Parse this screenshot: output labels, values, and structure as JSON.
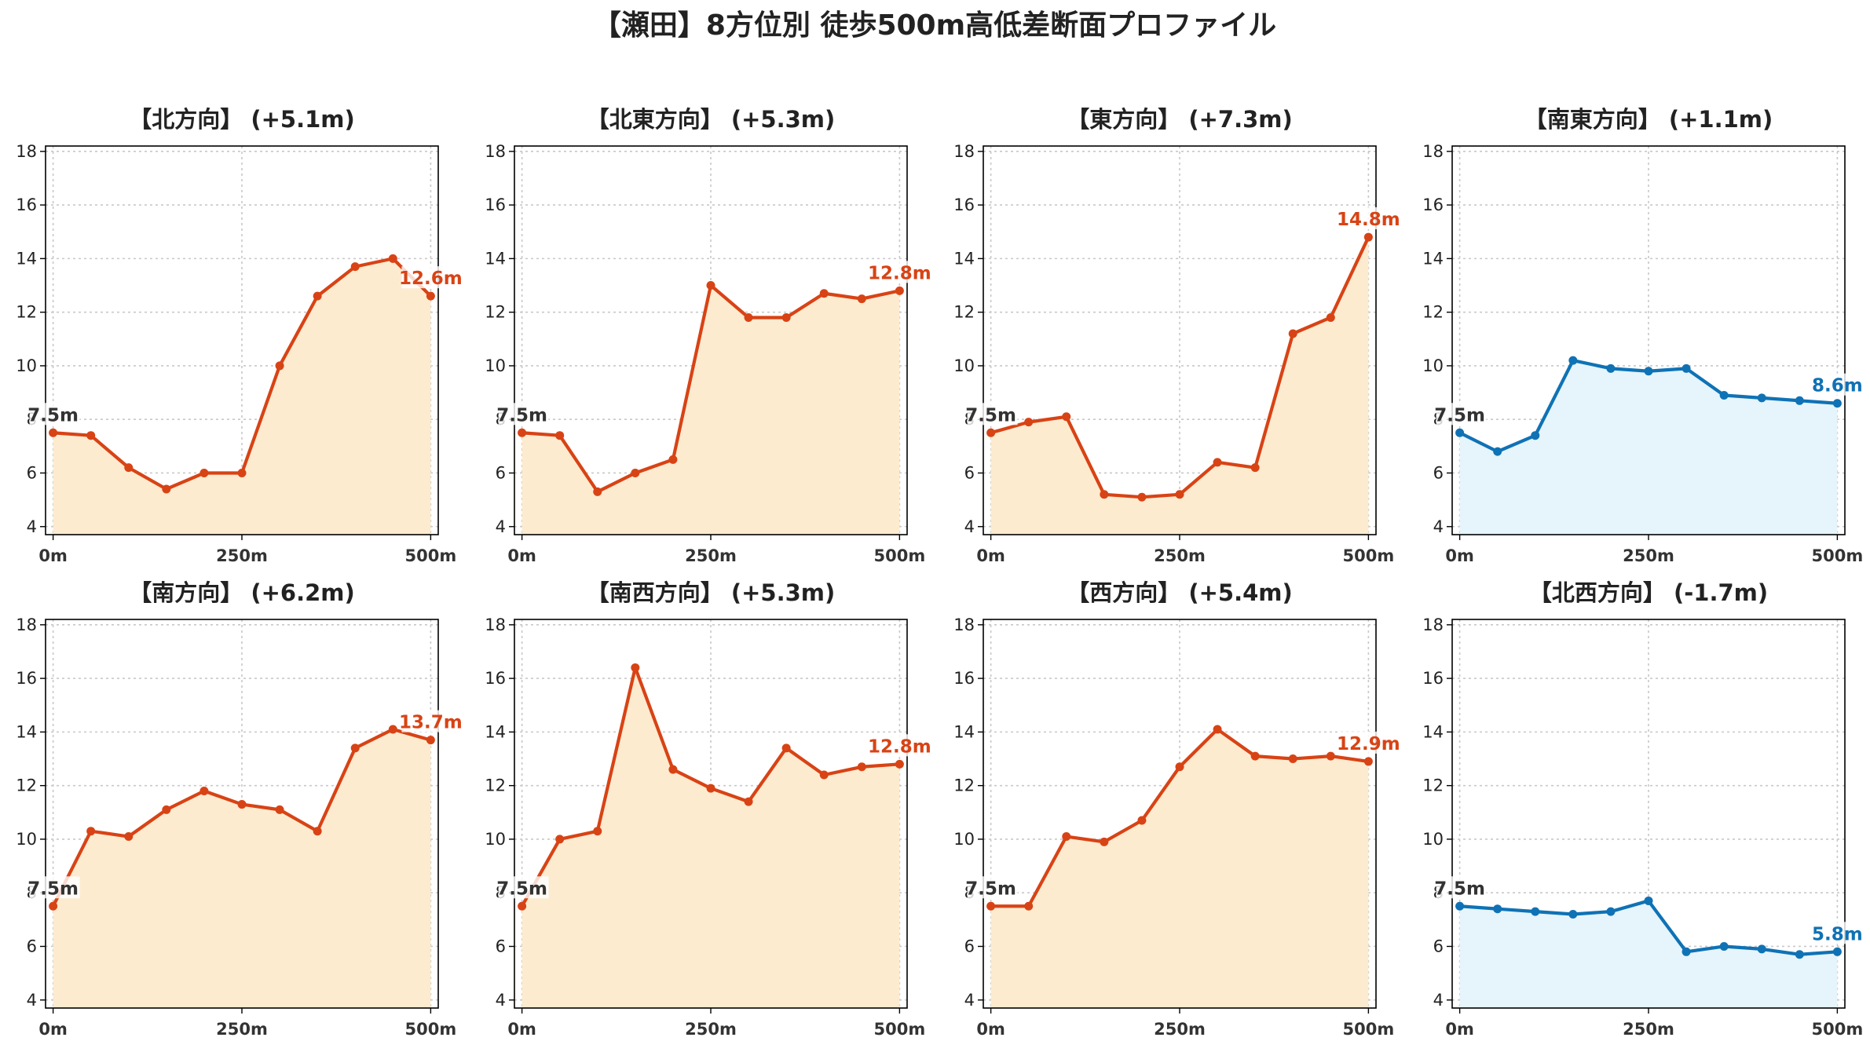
{
  "title": "【瀬田】8方位別 徒歩500m高低差断面プロファイル",
  "colors": {
    "up_line": "#d84315",
    "up_fill": "#fdebd0",
    "down_line": "#0f72b5",
    "down_fill": "#e6f4fb",
    "start_label": "#333333"
  },
  "chart_data": [
    {
      "type": "area",
      "title": "【北方向】 (+5.1m)",
      "x": [
        0,
        50,
        100,
        150,
        200,
        250,
        300,
        350,
        400,
        450,
        500
      ],
      "values": [
        7.5,
        7.4,
        6.2,
        5.4,
        6.0,
        6.0,
        10.0,
        12.6,
        13.7,
        14.0,
        12.6
      ],
      "start_label": "7.5m",
      "end_label": "12.6m",
      "trend": "up"
    },
    {
      "type": "area",
      "title": "【北東方向】 (+5.3m)",
      "x": [
        0,
        50,
        100,
        150,
        200,
        250,
        300,
        350,
        400,
        450,
        500
      ],
      "values": [
        7.5,
        7.4,
        5.3,
        6.0,
        6.5,
        13.0,
        11.8,
        11.8,
        12.7,
        12.5,
        12.8
      ],
      "start_label": "7.5m",
      "end_label": "12.8m",
      "trend": "up"
    },
    {
      "type": "area",
      "title": "【東方向】 (+7.3m)",
      "x": [
        0,
        50,
        100,
        150,
        200,
        250,
        300,
        350,
        400,
        450,
        500
      ],
      "values": [
        7.5,
        7.9,
        8.1,
        5.2,
        5.1,
        5.2,
        6.4,
        6.2,
        11.2,
        11.8,
        14.8
      ],
      "start_label": "7.5m",
      "end_label": "14.8m",
      "trend": "up"
    },
    {
      "type": "area",
      "title": "【南東方向】 (+1.1m)",
      "x": [
        0,
        50,
        100,
        150,
        200,
        250,
        300,
        350,
        400,
        450,
        500
      ],
      "values": [
        7.5,
        6.8,
        7.4,
        10.2,
        9.9,
        9.8,
        9.9,
        8.9,
        8.8,
        8.7,
        8.6
      ],
      "start_label": "7.5m",
      "end_label": "8.6m",
      "trend": "down"
    },
    {
      "type": "area",
      "title": "【南方向】 (+6.2m)",
      "x": [
        0,
        50,
        100,
        150,
        200,
        250,
        300,
        350,
        400,
        450,
        500
      ],
      "values": [
        7.5,
        10.3,
        10.1,
        11.1,
        11.8,
        11.3,
        11.1,
        10.3,
        13.4,
        14.1,
        13.7
      ],
      "start_label": "7.5m",
      "end_label": "13.7m",
      "trend": "up"
    },
    {
      "type": "area",
      "title": "【南西方向】 (+5.3m)",
      "x": [
        0,
        50,
        100,
        150,
        200,
        250,
        300,
        350,
        400,
        450,
        500
      ],
      "values": [
        7.5,
        10.0,
        10.3,
        16.4,
        12.6,
        11.9,
        11.4,
        13.4,
        12.4,
        12.7,
        12.8
      ],
      "start_label": "7.5m",
      "end_label": "12.8m",
      "trend": "up"
    },
    {
      "type": "area",
      "title": "【西方向】 (+5.4m)",
      "x": [
        0,
        50,
        100,
        150,
        200,
        250,
        300,
        350,
        400,
        450,
        500
      ],
      "values": [
        7.5,
        7.5,
        10.1,
        9.9,
        10.7,
        12.7,
        14.1,
        13.1,
        13.0,
        13.1,
        12.9
      ],
      "start_label": "7.5m",
      "end_label": "12.9m",
      "trend": "up"
    },
    {
      "type": "area",
      "title": "【北西方向】 (-1.7m)",
      "x": [
        0,
        50,
        100,
        150,
        200,
        250,
        300,
        350,
        400,
        450,
        500
      ],
      "values": [
        7.5,
        7.4,
        7.3,
        7.2,
        7.3,
        7.7,
        5.8,
        6.0,
        5.9,
        5.7,
        5.8
      ],
      "start_label": "7.5m",
      "end_label": "5.8m",
      "trend": "down"
    }
  ],
  "axes": {
    "ylim": [
      3.7,
      18.2
    ],
    "yticks": [
      "4",
      "6",
      "8",
      "10",
      "12",
      "14",
      "16",
      "18"
    ],
    "xticks": [
      "0m",
      "250m",
      "500m"
    ],
    "xlim": [
      -10,
      510
    ],
    "grid": true
  }
}
